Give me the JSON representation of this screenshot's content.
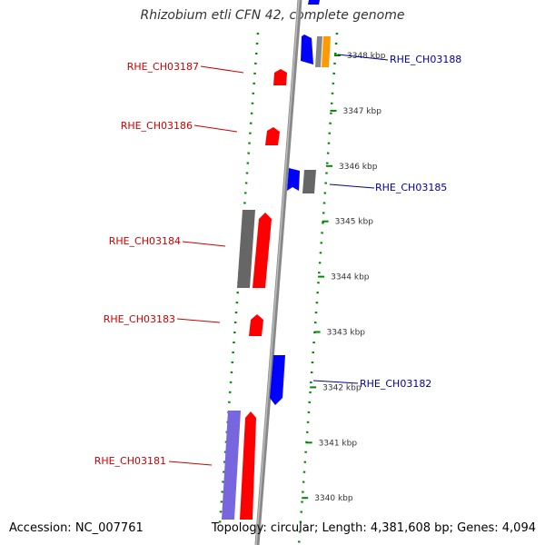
{
  "title": "Rhizobium etli CFN 42, complete genome",
  "accession_label": "Accession: NC_007761",
  "topology_label": "Topology: circular; Length: 4,381,608 bp; Genes: 4,094",
  "colors": {
    "forward_gene": "#ff0000",
    "reverse_gene": "#0000ff",
    "gray_feature": "#666666",
    "orange_feature": "#ff9900",
    "violet_feature": "#7766dd",
    "left_label": "#cc0000",
    "right_label": "#000099",
    "ruler": "#008800",
    "backbone": "#888888"
  },
  "ticks": [
    {
      "label": "3348 kbp"
    },
    {
      "label": "3347 kbp"
    },
    {
      "label": "3346 kbp"
    },
    {
      "label": "3345 kbp"
    },
    {
      "label": "3344 kbp"
    },
    {
      "label": "3343 kbp"
    },
    {
      "label": "3342 kbp"
    },
    {
      "label": "3341 kbp"
    },
    {
      "label": "3340 kbp"
    }
  ],
  "genes_left": [
    {
      "label": "RHE_CH03187"
    },
    {
      "label": "RHE_CH03186"
    },
    {
      "label": "RHE_CH03184"
    },
    {
      "label": "RHE_CH03183"
    },
    {
      "label": "RHE_CH03181"
    }
  ],
  "genes_right": [
    {
      "label": "RHE_CH03188"
    },
    {
      "label": "RHE_CH03185"
    },
    {
      "label": "RHE_CH03182"
    }
  ]
}
